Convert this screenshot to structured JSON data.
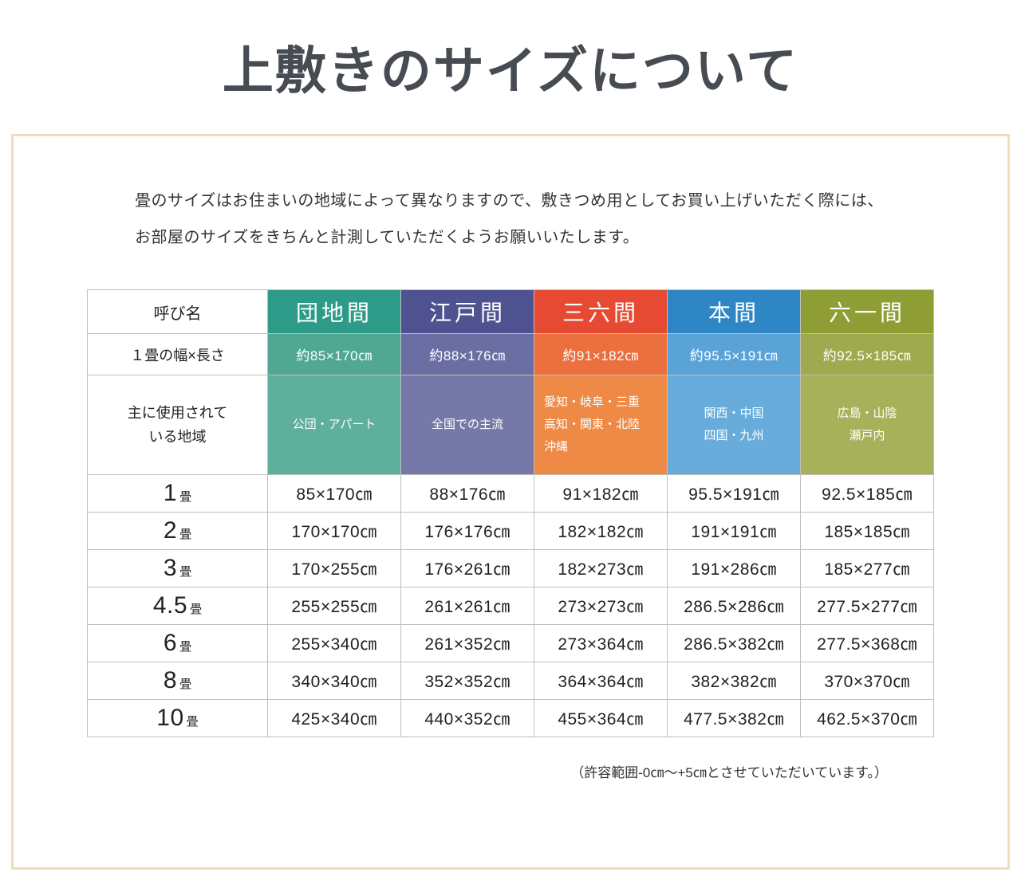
{
  "title": "上敷きのサイズについて",
  "intro_line1": "畳のサイズはお住まいの地域によって異なりますので、敷きつめ用としてお買い上げいただく際には、",
  "intro_line2": "お部屋のサイズをきちんと計測していただくようお願いいたします。",
  "footnote": "（許容範囲-0㎝～+5㎝とさせていただいています。）",
  "table": {
    "corner": {
      "name": "呼び名",
      "size": "１畳の幅×長さ",
      "region": "主に使用されて\nいる地域"
    },
    "cols": [
      {
        "label": "団地間",
        "size": "約85×170㎝",
        "region": "公団・アパート",
        "colors": {
          "header": "#2e9b88",
          "size": "#50a893",
          "region": "#5eaf9b"
        }
      },
      {
        "label": "江戸間",
        "size": "約88×176㎝",
        "region": "全国での主流",
        "colors": {
          "header": "#4e5290",
          "size": "#6a6ea2",
          "region": "#7679a8"
        }
      },
      {
        "label": "三六間",
        "size": "約91×182㎝",
        "region": "愛知・岐阜・三重\n高知・関東・北陸\n沖縄",
        "colors": {
          "header": "#e74a32",
          "size": "#ec6f3e",
          "region": "#ee8a45"
        }
      },
      {
        "label": "本間",
        "size": "約95.5×191㎝",
        "region": "関西・中国\n四国・九州",
        "colors": {
          "header": "#2e86c5",
          "size": "#5aa3d7",
          "region": "#68acdb"
        }
      },
      {
        "label": "六一間",
        "size": "約92.5×185㎝",
        "region": "広島・山陰\n瀬戸内",
        "colors": {
          "header": "#8f9d35",
          "size": "#9faa4f",
          "region": "#a7b15a"
        }
      }
    ],
    "rows": [
      {
        "num": "1",
        "unit": "畳",
        "v0": "85×170㎝",
        "v1": "88×176㎝",
        "v2": "91×182㎝",
        "v3": "95.5×191㎝",
        "v4": "92.5×185㎝"
      },
      {
        "num": "2",
        "unit": "畳",
        "v0": "170×170㎝",
        "v1": "176×176㎝",
        "v2": "182×182㎝",
        "v3": "191×191㎝",
        "v4": "185×185㎝"
      },
      {
        "num": "3",
        "unit": "畳",
        "v0": "170×255㎝",
        "v1": "176×261㎝",
        "v2": "182×273㎝",
        "v3": "191×286㎝",
        "v4": "185×277㎝"
      },
      {
        "num": "4.5",
        "unit": "畳",
        "v0": "255×255㎝",
        "v1": "261×261㎝",
        "v2": "273×273㎝",
        "v3": "286.5×286㎝",
        "v4": "277.5×277㎝"
      },
      {
        "num": "6",
        "unit": "畳",
        "v0": "255×340㎝",
        "v1": "261×352㎝",
        "v2": "273×364㎝",
        "v3": "286.5×382㎝",
        "v4": "277.5×368㎝"
      },
      {
        "num": "8",
        "unit": "畳",
        "v0": "340×340㎝",
        "v1": "352×352㎝",
        "v2": "364×364㎝",
        "v3": "382×382㎝",
        "v4": "370×370㎝"
      },
      {
        "num": "10",
        "unit": "畳",
        "v0": "425×340㎝",
        "v1": "440×352㎝",
        "v2": "455×364㎝",
        "v3": "477.5×382㎝",
        "v4": "462.5×370㎝"
      }
    ]
  }
}
